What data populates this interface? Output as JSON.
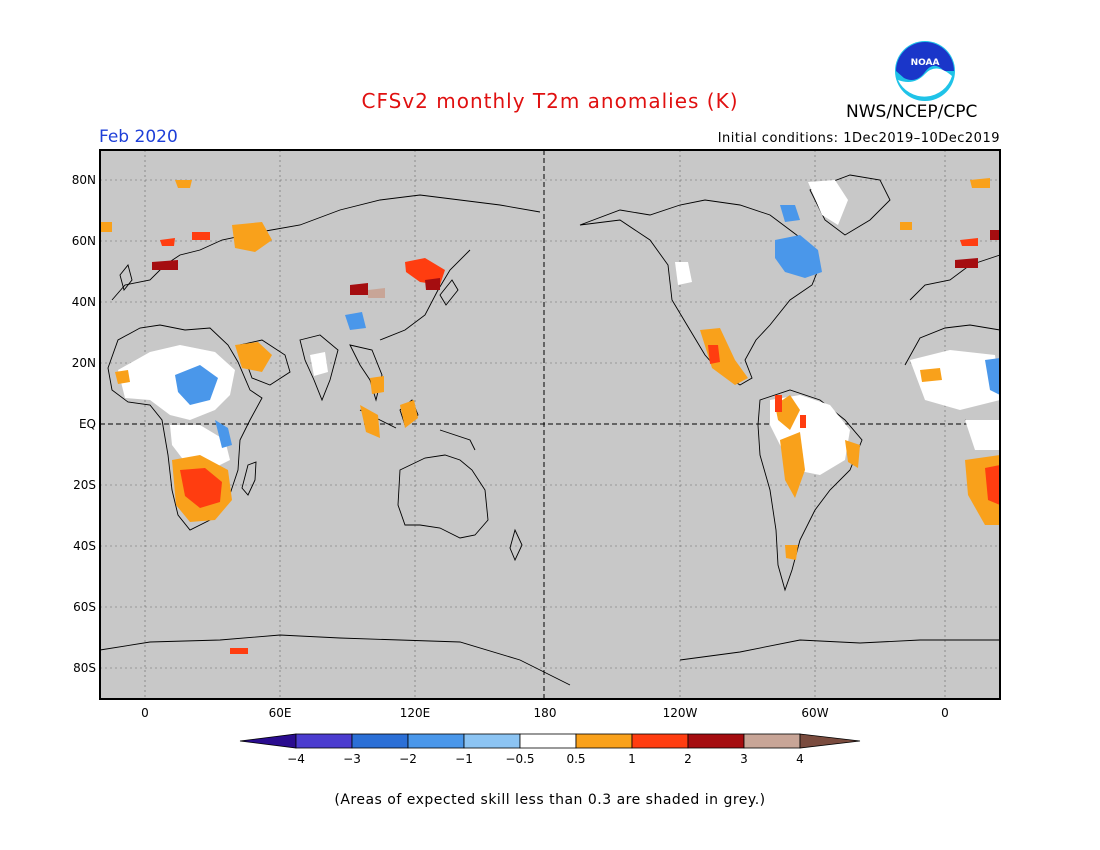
{
  "title": "CFSv2 monthly T2m anomalies (K)",
  "org": "NWS/NCEP/CPC",
  "logo_text": "NOAA",
  "valid_month": "Feb 2020",
  "initial_conditions": "Initial conditions: 1Dec2019–10Dec2019",
  "footnote": "(Areas of expected skill less than 0.3 are shaded in grey.)",
  "lat_labels": [
    "80N",
    "60N",
    "40N",
    "20N",
    "EQ",
    "20S",
    "40S",
    "60S",
    "80S"
  ],
  "lon_labels": [
    "0",
    "60E",
    "120E",
    "180",
    "120W",
    "60W",
    "0"
  ],
  "colorbar": {
    "ticks": [
      "−4",
      "−3",
      "−2",
      "−1",
      "−0.5",
      "0.5",
      "1",
      "2",
      "3",
      "4"
    ],
    "colors": [
      "#2a0c8f",
      "#4b3ccf",
      "#2b6fd6",
      "#4a97ea",
      "#8cc4f3",
      "#ffffff",
      "#f9a11b",
      "#ff3d10",
      "#a50d10",
      "#c8a597",
      "#7a4b3e"
    ]
  },
  "colors": {
    "land_skill_low": "#c8c8c8",
    "title": "#e01010",
    "valid_month": "#1e3fd8"
  }
}
